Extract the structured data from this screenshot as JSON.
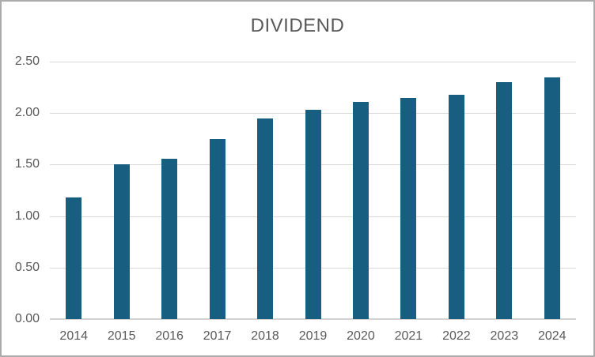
{
  "window": {
    "background_color": "#ffffff",
    "border_color": "#ababab"
  },
  "chart_data": {
    "type": "bar",
    "title": "DIVIDEND",
    "categories": [
      "2014",
      "2015",
      "2016",
      "2017",
      "2018",
      "2019",
      "2020",
      "2021",
      "2022",
      "2023",
      "2024"
    ],
    "values": [
      1.18,
      1.5,
      1.56,
      1.75,
      1.95,
      2.03,
      2.11,
      2.15,
      2.18,
      2.3,
      2.35
    ],
    "xlabel": "",
    "ylabel": "",
    "ylim": [
      0,
      2.5
    ],
    "ytick_step": 0.5,
    "ytick_labels": [
      "0.00",
      "0.50",
      "1.00",
      "1.50",
      "2.00",
      "2.50"
    ],
    "grid": true,
    "legend": false,
    "bar_color": "#175e80",
    "gridline_color": "#d9d9d9",
    "axis_text_color": "#595959",
    "title_color": "#595959"
  }
}
